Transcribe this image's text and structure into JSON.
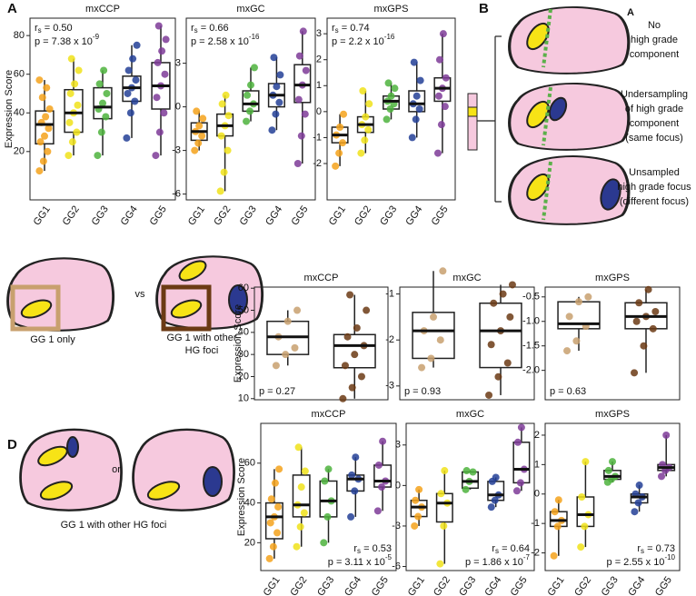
{
  "figure": {
    "panel_labels": [
      "A",
      "B",
      "C",
      "D"
    ],
    "b_inset_label": "A",
    "b_captions": [
      [
        "No",
        "high grade",
        "component"
      ],
      [
        "Undersampling",
        "of high grade",
        "component",
        "(same focus)"
      ],
      [
        "Unsampled",
        "high grade focus",
        "(different focus)"
      ]
    ],
    "c_captions": [
      "GG 1 only",
      "vs",
      "GG 1 with other",
      "HG foci"
    ],
    "d_captions": [
      "or",
      "GG 1 with other HG foci"
    ]
  },
  "chart_data": [
    {
      "type": "box",
      "title": "mxCCP",
      "ylabel": "Expression Score",
      "categories": [
        "GG1",
        "GG2",
        "GG3",
        "GG4",
        "GG5"
      ],
      "colors": [
        "#f5a21b",
        "#f0e21a",
        "#4db33d",
        "#233f97",
        "#7e3b98"
      ],
      "ylim": [
        -5,
        89
      ],
      "yticks": [
        20,
        40,
        60,
        80
      ],
      "annotation_corner": "top-left",
      "annotations": [
        {
          "text": "r",
          "sub": "s",
          "after": " = 0.50"
        },
        {
          "text": "p = 7.38 x 10",
          "sup": "-9"
        }
      ],
      "boxes": [
        {
          "whisker_low": 10,
          "q1": 24,
          "median": 34,
          "q3": 41,
          "whisker_high": 57,
          "points": [
            10,
            15,
            20,
            25,
            28,
            32,
            35,
            38,
            42,
            48,
            53,
            57
          ]
        },
        {
          "whisker_low": 18,
          "q1": 30,
          "median": 40,
          "q3": 52,
          "whisker_high": 68,
          "points": [
            18,
            25,
            30,
            35,
            40,
            44,
            50,
            55,
            62,
            68
          ]
        },
        {
          "whisker_low": 18,
          "q1": 37,
          "median": 43,
          "q3": 53,
          "whisker_high": 62,
          "points": [
            18,
            30,
            38,
            42,
            45,
            50,
            55,
            62
          ]
        },
        {
          "whisker_low": 27,
          "q1": 46,
          "median": 53,
          "q3": 59,
          "whisker_high": 75,
          "points": [
            27,
            40,
            46,
            50,
            53,
            57,
            62,
            68,
            75
          ]
        },
        {
          "whisker_low": 18,
          "q1": 42,
          "median": 54,
          "q3": 66,
          "whisker_high": 85,
          "points": [
            18,
            30,
            40,
            48,
            54,
            60,
            66,
            72,
            78,
            85
          ]
        }
      ]
    },
    {
      "type": "box",
      "title": "mxGC",
      "categories": [
        "GG1",
        "GG2",
        "GG3",
        "GG4",
        "GG5"
      ],
      "colors": [
        "#f5a21b",
        "#f0e21a",
        "#4db33d",
        "#233f97",
        "#7e3b98"
      ],
      "ylim": [
        -6.4,
        6.1
      ],
      "yticks": [
        -6,
        -3,
        0,
        3
      ],
      "annotation_corner": "top-left",
      "annotations": [
        {
          "text": "r",
          "sub": "s",
          "after": " = 0.66"
        },
        {
          "text": "p = 2.58 x 10",
          "sup": "-16"
        }
      ],
      "boxes": [
        {
          "whisker_low": -3,
          "q1": -2.3,
          "median": -1.7,
          "q3": -1.1,
          "whisker_high": -0.3,
          "points": [
            -3,
            -2.5,
            -2,
            -1.7,
            -1.3,
            -0.8,
            -0.3
          ]
        },
        {
          "whisker_low": -5.8,
          "q1": -2,
          "median": -1.3,
          "q3": -0.5,
          "whisker_high": 0.8,
          "points": [
            -5.8,
            -4.5,
            -3,
            -2,
            -1.3,
            -0.6,
            0.2,
            0.8
          ]
        },
        {
          "whisker_low": -1,
          "q1": -0.3,
          "median": 0.2,
          "q3": 1.1,
          "whisker_high": 2.7,
          "points": [
            -1,
            -0.3,
            0.2,
            0.8,
            1.5,
            2.7
          ]
        },
        {
          "whisker_low": -1.6,
          "q1": 0,
          "median": 0.8,
          "q3": 1.6,
          "whisker_high": 3.4,
          "points": [
            -1.6,
            -0.5,
            0.3,
            0.8,
            1.4,
            2.2,
            3.4
          ]
        },
        {
          "whisker_low": -3.9,
          "q1": 0.3,
          "median": 1.5,
          "q3": 2.9,
          "whisker_high": 5.2,
          "points": [
            -3.9,
            -2,
            -0.5,
            0.5,
            1.5,
            2.5,
            3.5,
            5.2
          ]
        }
      ]
    },
    {
      "type": "box",
      "title": "mxGPS",
      "categories": [
        "GG1",
        "GG2",
        "GG3",
        "GG4",
        "GG5"
      ],
      "colors": [
        "#f5a21b",
        "#f0e21a",
        "#4db33d",
        "#233f97",
        "#7e3b98"
      ],
      "ylim": [
        -3.4,
        3.6
      ],
      "yticks": [
        -2,
        -1,
        0,
        1,
        2,
        3
      ],
      "annotation_corner": "top-left",
      "annotations": [
        {
          "text": "r",
          "sub": "s",
          "after": " = 0.74"
        },
        {
          "text": "p = 2.2 x 10",
          "sup": "-16"
        }
      ],
      "boxes": [
        {
          "whisker_low": -2.1,
          "q1": -1.2,
          "median": -0.9,
          "q3": -0.6,
          "whisker_high": -0.1,
          "points": [
            -2.1,
            -1.6,
            -1.2,
            -0.9,
            -0.6,
            -0.1
          ]
        },
        {
          "whisker_low": -1.6,
          "q1": -0.8,
          "median": -0.5,
          "q3": -0.2,
          "whisker_high": 0.8,
          "points": [
            -1.6,
            -1.1,
            -0.7,
            -0.5,
            -0.2,
            0.3,
            0.8
          ]
        },
        {
          "whisker_low": -0.3,
          "q1": 0.1,
          "median": 0.4,
          "q3": 0.6,
          "whisker_high": 1.1,
          "points": [
            -0.3,
            0.1,
            0.3,
            0.4,
            0.6,
            0.9,
            1.1
          ]
        },
        {
          "whisker_low": -1,
          "q1": 0,
          "median": 0.3,
          "q3": 0.8,
          "whisker_high": 1.9,
          "points": [
            -1,
            -0.3,
            0.1,
            0.3,
            0.6,
            1.2,
            1.9
          ]
        },
        {
          "whisker_low": -1.6,
          "q1": 0.4,
          "median": 0.9,
          "q3": 1.3,
          "whisker_high": 3,
          "points": [
            -1.6,
            -0.5,
            0.2,
            0.6,
            0.9,
            1.3,
            2,
            3
          ]
        }
      ]
    },
    {
      "type": "box",
      "title": "mxCCP",
      "ylabel": "Expression Score",
      "categories": [
        null,
        null
      ],
      "colors": [
        "#c8a06e",
        "#6b3a14"
      ],
      "ylim": [
        9.5,
        60.5
      ],
      "yticks": [
        10,
        20,
        30,
        40,
        50,
        60
      ],
      "annotation_corner": "bottom-left",
      "annotations": [
        {
          "text": "p = 0.27"
        }
      ],
      "boxes": [
        {
          "whisker_low": 25,
          "q1": 30,
          "median": 38,
          "q3": 45,
          "whisker_high": 50,
          "points": [
            25,
            30,
            33,
            38,
            45,
            50
          ]
        },
        {
          "whisker_low": 10,
          "q1": 24,
          "median": 34,
          "q3": 39,
          "whisker_high": 57,
          "points": [
            10,
            15,
            20,
            25,
            30,
            34,
            38,
            42,
            50,
            57
          ]
        }
      ]
    },
    {
      "type": "box",
      "title": "mxGC",
      "categories": [
        null,
        null
      ],
      "colors": [
        "#c8a06e",
        "#6b3a14"
      ],
      "ylim": [
        -3.3,
        -0.85
      ],
      "yticks": [
        -3,
        -2,
        -1
      ],
      "annotation_corner": "bottom-left",
      "annotations": [
        {
          "text": "p = 0.93"
        }
      ],
      "boxes": [
        {
          "whisker_low": -2.6,
          "q1": -2.4,
          "median": -1.8,
          "q3": -1.4,
          "whisker_high": -0.5,
          "points": [
            -2.6,
            -2.4,
            -2,
            -1.8,
            -1.5,
            -0.5
          ]
        },
        {
          "whisker_low": -3.2,
          "q1": -2.6,
          "median": -1.8,
          "q3": -1.2,
          "whisker_high": -0.8,
          "points": [
            -3.2,
            -2.8,
            -2.5,
            -2.1,
            -1.8,
            -1.5,
            -1.2,
            -1,
            -0.8
          ]
        }
      ]
    },
    {
      "type": "box",
      "title": "mxGPS",
      "categories": [
        null,
        null
      ],
      "colors": [
        "#c8a06e",
        "#6b3a14"
      ],
      "ylim": [
        -2.6,
        -0.3
      ],
      "yticks": [
        {
          "value": -2,
          "label": "-2.0"
        },
        -1.5,
        {
          "value": -1,
          "label": "-1.0"
        },
        -0.5
      ],
      "annotation_corner": "bottom-left",
      "annotations": [
        {
          "text": "p = 0.63"
        }
      ],
      "boxes": [
        {
          "whisker_low": -1.6,
          "q1": -1.15,
          "median": -1.05,
          "q3": -0.6,
          "whisker_high": -0.5,
          "points": [
            -1.6,
            -1.4,
            -1.1,
            -0.9,
            -0.6,
            -0.5
          ]
        },
        {
          "whisker_low": -2.05,
          "q1": -1.15,
          "median": -0.9,
          "q3": -0.62,
          "whisker_high": -0.35,
          "points": [
            -2.05,
            -1.5,
            -1.15,
            -1,
            -0.9,
            -0.8,
            -0.62,
            -0.35
          ]
        }
      ]
    },
    {
      "type": "box",
      "title": "mxCCP",
      "ylabel": "Expression Score",
      "categories": [
        "GG1",
        "GG2",
        "GG3",
        "GG4",
        "GG5"
      ],
      "colors": [
        "#f5a21b",
        "#f0e21a",
        "#4db33d",
        "#233f97",
        "#7e3b98"
      ],
      "ylim": [
        6,
        80
      ],
      "yticks": [
        20,
        40,
        60
      ],
      "annotation_corner": "bottom-right",
      "annotations": [
        {
          "text": "r",
          "sub": "s",
          "after": " = 0.53"
        },
        {
          "text": "p = 3.11 x 10",
          "sup": "-5"
        }
      ],
      "boxes": [
        {
          "whisker_low": 12,
          "q1": 22,
          "median": 33,
          "q3": 40,
          "whisker_high": 57,
          "points": [
            12,
            18,
            25,
            30,
            33,
            38,
            42,
            50,
            57
          ]
        },
        {
          "whisker_low": 18,
          "q1": 33,
          "median": 39,
          "q3": 54,
          "whisker_high": 68,
          "points": [
            18,
            28,
            35,
            39,
            48,
            56,
            68
          ]
        },
        {
          "whisker_low": 20,
          "q1": 33,
          "median": 41,
          "q3": 51,
          "whisker_high": 57,
          "points": [
            20,
            33,
            41,
            51,
            57
          ]
        },
        {
          "whisker_low": 33,
          "q1": 46,
          "median": 52,
          "q3": 54,
          "whisker_high": 63,
          "points": [
            33,
            46,
            52,
            54,
            63
          ]
        },
        {
          "whisker_low": 36,
          "q1": 48,
          "median": 51,
          "q3": 59,
          "whisker_high": 71,
          "points": [
            36,
            48,
            51,
            59,
            71
          ]
        }
      ]
    },
    {
      "type": "box",
      "title": "mxGC",
      "categories": [
        "GG1",
        "GG2",
        "GG3",
        "GG4",
        "GG5"
      ],
      "colors": [
        "#f5a21b",
        "#f0e21a",
        "#4db33d",
        "#233f97",
        "#7e3b98"
      ],
      "ylim": [
        -6.3,
        4.6
      ],
      "yticks": [
        -6,
        -3,
        0,
        3
      ],
      "annotation_corner": "bottom-right",
      "annotations": [
        {
          "text": "r",
          "sub": "s",
          "after": " = 0.64"
        },
        {
          "text": "p = 1.86 x 10",
          "sup": "-7"
        }
      ],
      "boxes": [
        {
          "whisker_low": -3,
          "q1": -2.3,
          "median": -1.6,
          "q3": -1.1,
          "whisker_high": -0.3,
          "points": [
            -3,
            -2.3,
            -1.6,
            -1.1,
            -0.3
          ]
        },
        {
          "whisker_low": -5.8,
          "q1": -2.7,
          "median": -1.3,
          "q3": -0.6,
          "whisker_high": 1.1,
          "points": [
            -5.8,
            -3,
            -1.3,
            -0.6,
            1.1
          ]
        },
        {
          "whisker_low": -0.3,
          "q1": -0.2,
          "median": 0.3,
          "q3": 1,
          "whisker_high": 1.1,
          "points": [
            -0.3,
            0.3,
            1,
            1.1
          ]
        },
        {
          "whisker_low": -1.6,
          "q1": -1.1,
          "median": -0.7,
          "q3": 0.3,
          "whisker_high": 0.6,
          "points": [
            -1.6,
            -1.1,
            -0.7,
            0.3,
            0.6
          ]
        },
        {
          "whisker_low": -0.4,
          "q1": 0.2,
          "median": 1.2,
          "q3": 3.2,
          "whisker_high": 4.3,
          "points": [
            -0.4,
            0.2,
            1.2,
            3.2,
            4.3
          ]
        }
      ]
    },
    {
      "type": "box",
      "title": "mxGPS",
      "categories": [
        "GG1",
        "GG2",
        "GG3",
        "GG4",
        "GG5"
      ],
      "colors": [
        "#f5a21b",
        "#f0e21a",
        "#4db33d",
        "#233f97",
        "#7e3b98"
      ],
      "ylim": [
        -2.6,
        2.4
      ],
      "yticks": [
        -2,
        -1,
        0,
        1,
        2
      ],
      "annotation_corner": "bottom-right",
      "annotations": [
        {
          "text": "r",
          "sub": "s",
          "after": " = 0.73"
        },
        {
          "text": "p = 2.55 x 10",
          "sup": "-10"
        }
      ],
      "boxes": [
        {
          "whisker_low": -2.1,
          "q1": -1.1,
          "median": -0.9,
          "q3": -0.6,
          "whisker_high": -0.2,
          "points": [
            -2.1,
            -1.1,
            -0.9,
            -0.6,
            -0.2
          ]
        },
        {
          "whisker_low": -1.8,
          "q1": -1.1,
          "median": -0.7,
          "q3": -0.1,
          "whisker_high": 1.1,
          "points": [
            -1.8,
            -1.1,
            -0.7,
            -0.1,
            1.1
          ]
        },
        {
          "whisker_low": 0.4,
          "q1": 0.5,
          "median": 0.6,
          "q3": 0.8,
          "whisker_high": 1.1,
          "points": [
            0.4,
            0.5,
            0.6,
            0.8,
            1.1
          ]
        },
        {
          "whisker_low": -0.6,
          "q1": -0.3,
          "median": -0.1,
          "q3": 0,
          "whisker_high": 0.3,
          "points": [
            -0.6,
            -0.3,
            -0.1,
            0,
            0.3
          ]
        },
        {
          "whisker_low": 0.6,
          "q1": 0.8,
          "median": 0.9,
          "q3": 1,
          "whisker_high": 2,
          "points": [
            0.6,
            0.8,
            0.9,
            1,
            2
          ]
        }
      ]
    }
  ]
}
